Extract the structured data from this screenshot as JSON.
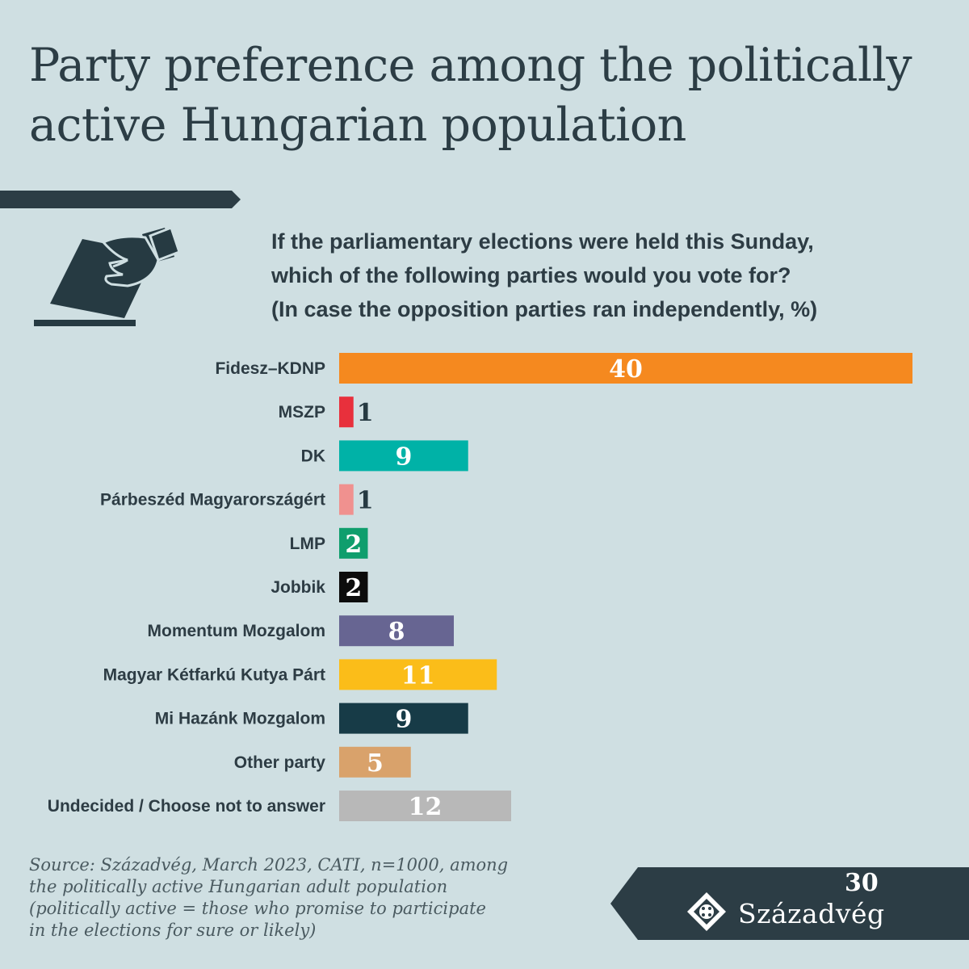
{
  "header": {
    "title": "Party preference among the politically active Hungarian population",
    "question_lines": [
      "If the parliamentary elections were held this Sunday,",
      "which of the following parties would you vote for?",
      "(In case the opposition parties ran independently, %)"
    ]
  },
  "icons": {
    "ballot": "ballot-box-hand-icon",
    "logo_emblem": "szazadveg-emblem-icon"
  },
  "chart_data": {
    "type": "bar",
    "orientation": "horizontal",
    "categories": [
      "Fidesz–KDNP",
      "MSZP",
      "DK",
      "Párbeszéd Magyarországért",
      "LMP",
      "Jobbik",
      "Momentum Mozgalom",
      "Magyar Kétfarkú Kutya Párt",
      "Mi Hazánk Mozgalom",
      "Other party",
      "Undecided / Choose not to answer"
    ],
    "values": [
      40,
      1,
      9,
      1,
      2,
      2,
      8,
      11,
      9,
      5,
      12
    ],
    "colors": [
      "#f5891f",
      "#e8303c",
      "#00b2a7",
      "#f0918f",
      "#0f9e6d",
      "#0c0c0c",
      "#676592",
      "#fbbd19",
      "#173b47",
      "#d9a26b",
      "#b8b8b8"
    ],
    "value_label_colors": [
      "#ffffff",
      "#263a42",
      "#ffffff",
      "#263a42",
      "#ffffff",
      "#ffffff",
      "#ffffff",
      "#ffffff",
      "#ffffff",
      "#ffffff",
      "#ffffff"
    ],
    "unit": "%"
  },
  "source": {
    "lines": [
      "Source: Századvég, March 2023, CATI, n=1000, among",
      "the politically active Hungarian adult population",
      "(politically active = those who promise to participate",
      "in the elections for sure or likely)"
    ]
  },
  "logo": {
    "name": "Századvég",
    "anniversary": "30"
  }
}
